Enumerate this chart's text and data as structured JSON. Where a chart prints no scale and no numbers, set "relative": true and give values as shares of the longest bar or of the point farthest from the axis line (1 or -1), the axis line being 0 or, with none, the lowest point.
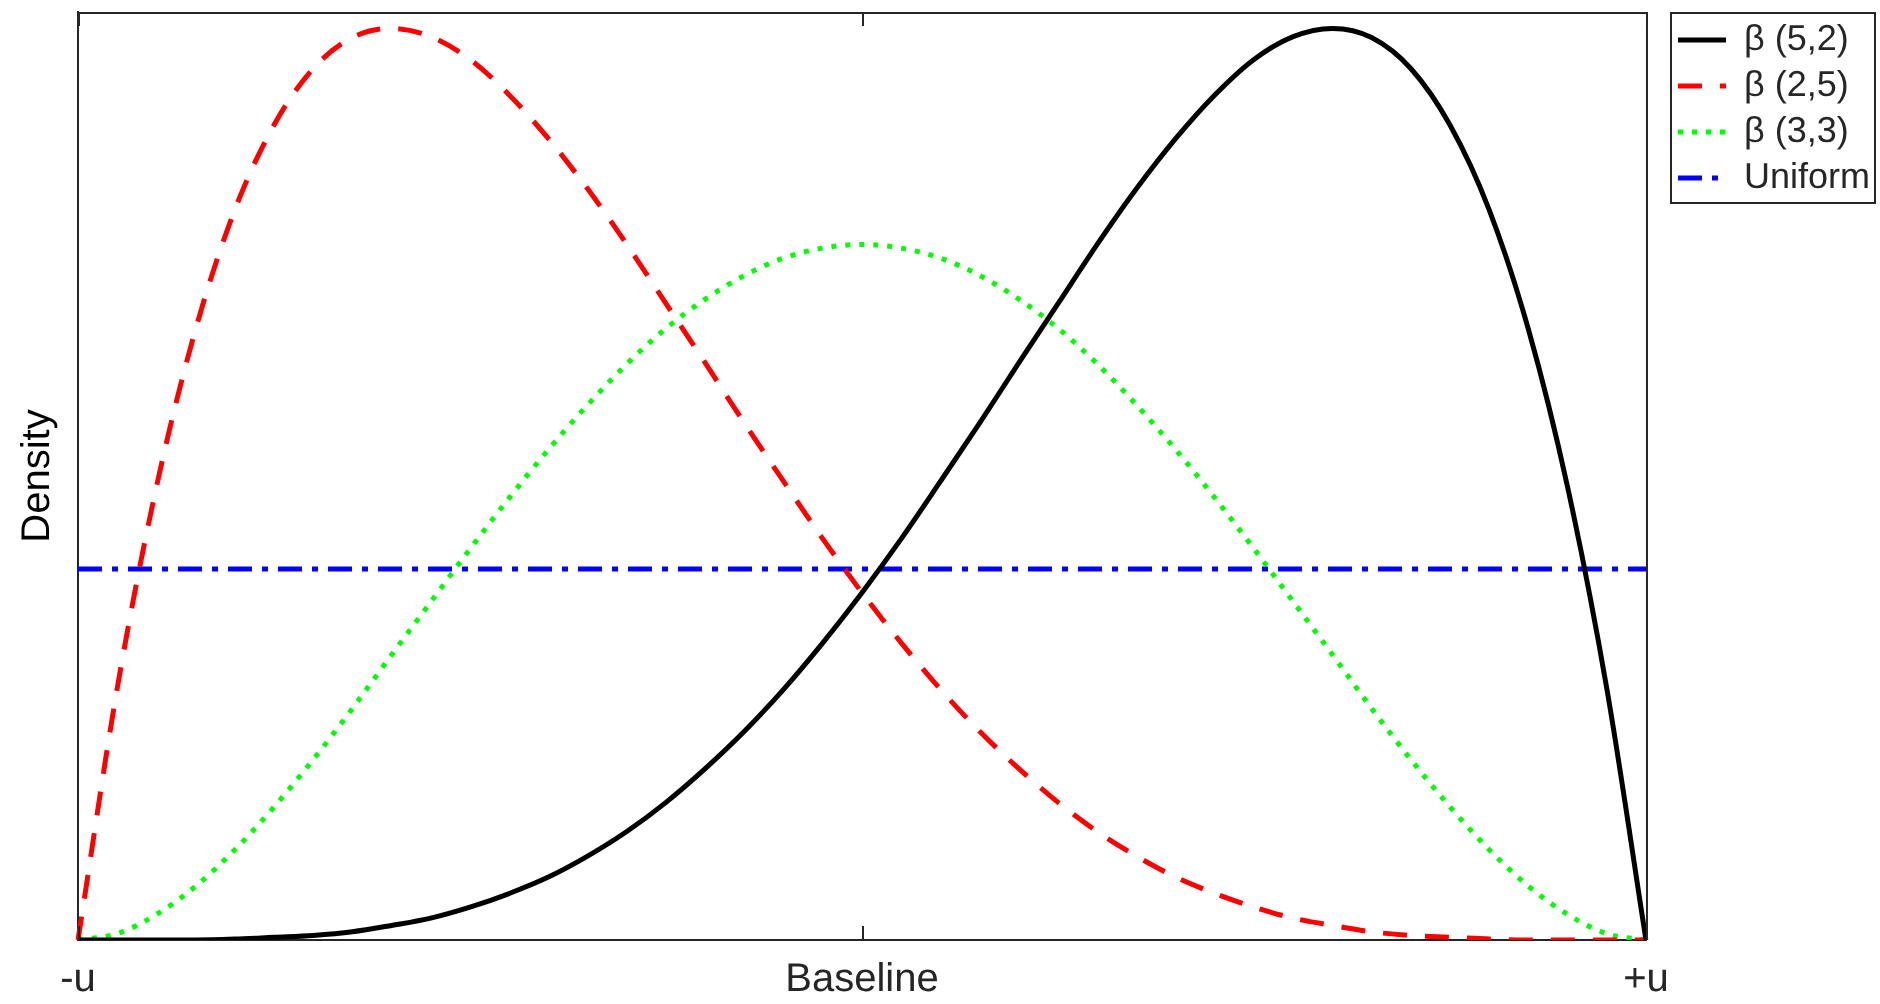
{
  "chart_data": {
    "type": "line",
    "ylabel": "Density",
    "relative": true,
    "legend": "top right",
    "grid": false,
    "categories": [
      "-u",
      null,
      null,
      null,
      null,
      null,
      null,
      null,
      null,
      null,
      null,
      null,
      null,
      null,
      null,
      null,
      null,
      null,
      null,
      null,
      "Baseline",
      null,
      null,
      null,
      null,
      null,
      null,
      null,
      null,
      null,
      null,
      null,
      null,
      null,
      null,
      null,
      null,
      null,
      null,
      null,
      "+u"
    ],
    "series": [
      {
        "name": "β (5,2)",
        "color": "#000000",
        "line_style": "solid",
        "values": [
          0,
          0,
          0,
          0,
          0.001,
          0.003,
          0.005,
          0.009,
          0.016,
          0.024,
          0.036,
          0.051,
          0.069,
          0.092,
          0.119,
          0.151,
          0.188,
          0.229,
          0.275,
          0.326,
          0.381,
          0.44,
          0.503,
          0.567,
          0.633,
          0.698,
          0.763,
          0.824,
          0.879,
          0.927,
          0.966,
          0.991,
          1,
          0.99,
          0.956,
          0.894,
          0.801,
          0.67,
          0.497,
          0.276,
          0
        ]
      },
      {
        "name": "β (2,5)",
        "color": "#ff0000",
        "line_style": "dashed",
        "values": [
          0,
          0.276,
          0.497,
          0.67,
          0.801,
          0.894,
          0.956,
          0.99,
          1,
          0.991,
          0.966,
          0.927,
          0.879,
          0.824,
          0.763,
          0.698,
          0.633,
          0.567,
          0.503,
          0.44,
          0.381,
          0.326,
          0.275,
          0.229,
          0.188,
          0.151,
          0.119,
          0.092,
          0.069,
          0.051,
          0.036,
          0.024,
          0.016,
          0.009,
          0.005,
          0.003,
          0.001,
          0,
          0,
          0,
          0
        ]
      },
      {
        "name": "β (3,3)",
        "color": "#00ff00",
        "line_style": "dotted",
        "values": [
          0,
          0.007,
          0.028,
          0.059,
          0.099,
          0.146,
          0.198,
          0.254,
          0.313,
          0.371,
          0.429,
          0.485,
          0.538,
          0.587,
          0.632,
          0.671,
          0.703,
          0.729,
          0.748,
          0.759,
          0.763,
          0.759,
          0.748,
          0.729,
          0.703,
          0.671,
          0.632,
          0.587,
          0.538,
          0.485,
          0.429,
          0.371,
          0.313,
          0.254,
          0.198,
          0.146,
          0.099,
          0.059,
          0.028,
          0.007,
          0
        ]
      },
      {
        "name": "Uniform",
        "color": "#0000ff",
        "line_style": "dashdot",
        "values": [
          0.407,
          0.407,
          0.407,
          0.407,
          0.407,
          0.407,
          0.407,
          0.407,
          0.407,
          0.407,
          0.407,
          0.407,
          0.407,
          0.407,
          0.407,
          0.407,
          0.407,
          0.407,
          0.407,
          0.407,
          0.407,
          0.407,
          0.407,
          0.407,
          0.407,
          0.407,
          0.407,
          0.407,
          0.407,
          0.407,
          0.407,
          0.407,
          0.407,
          0.407,
          0.407,
          0.407,
          0.407,
          0.407,
          0.407,
          0.407,
          0.407
        ]
      }
    ]
  }
}
